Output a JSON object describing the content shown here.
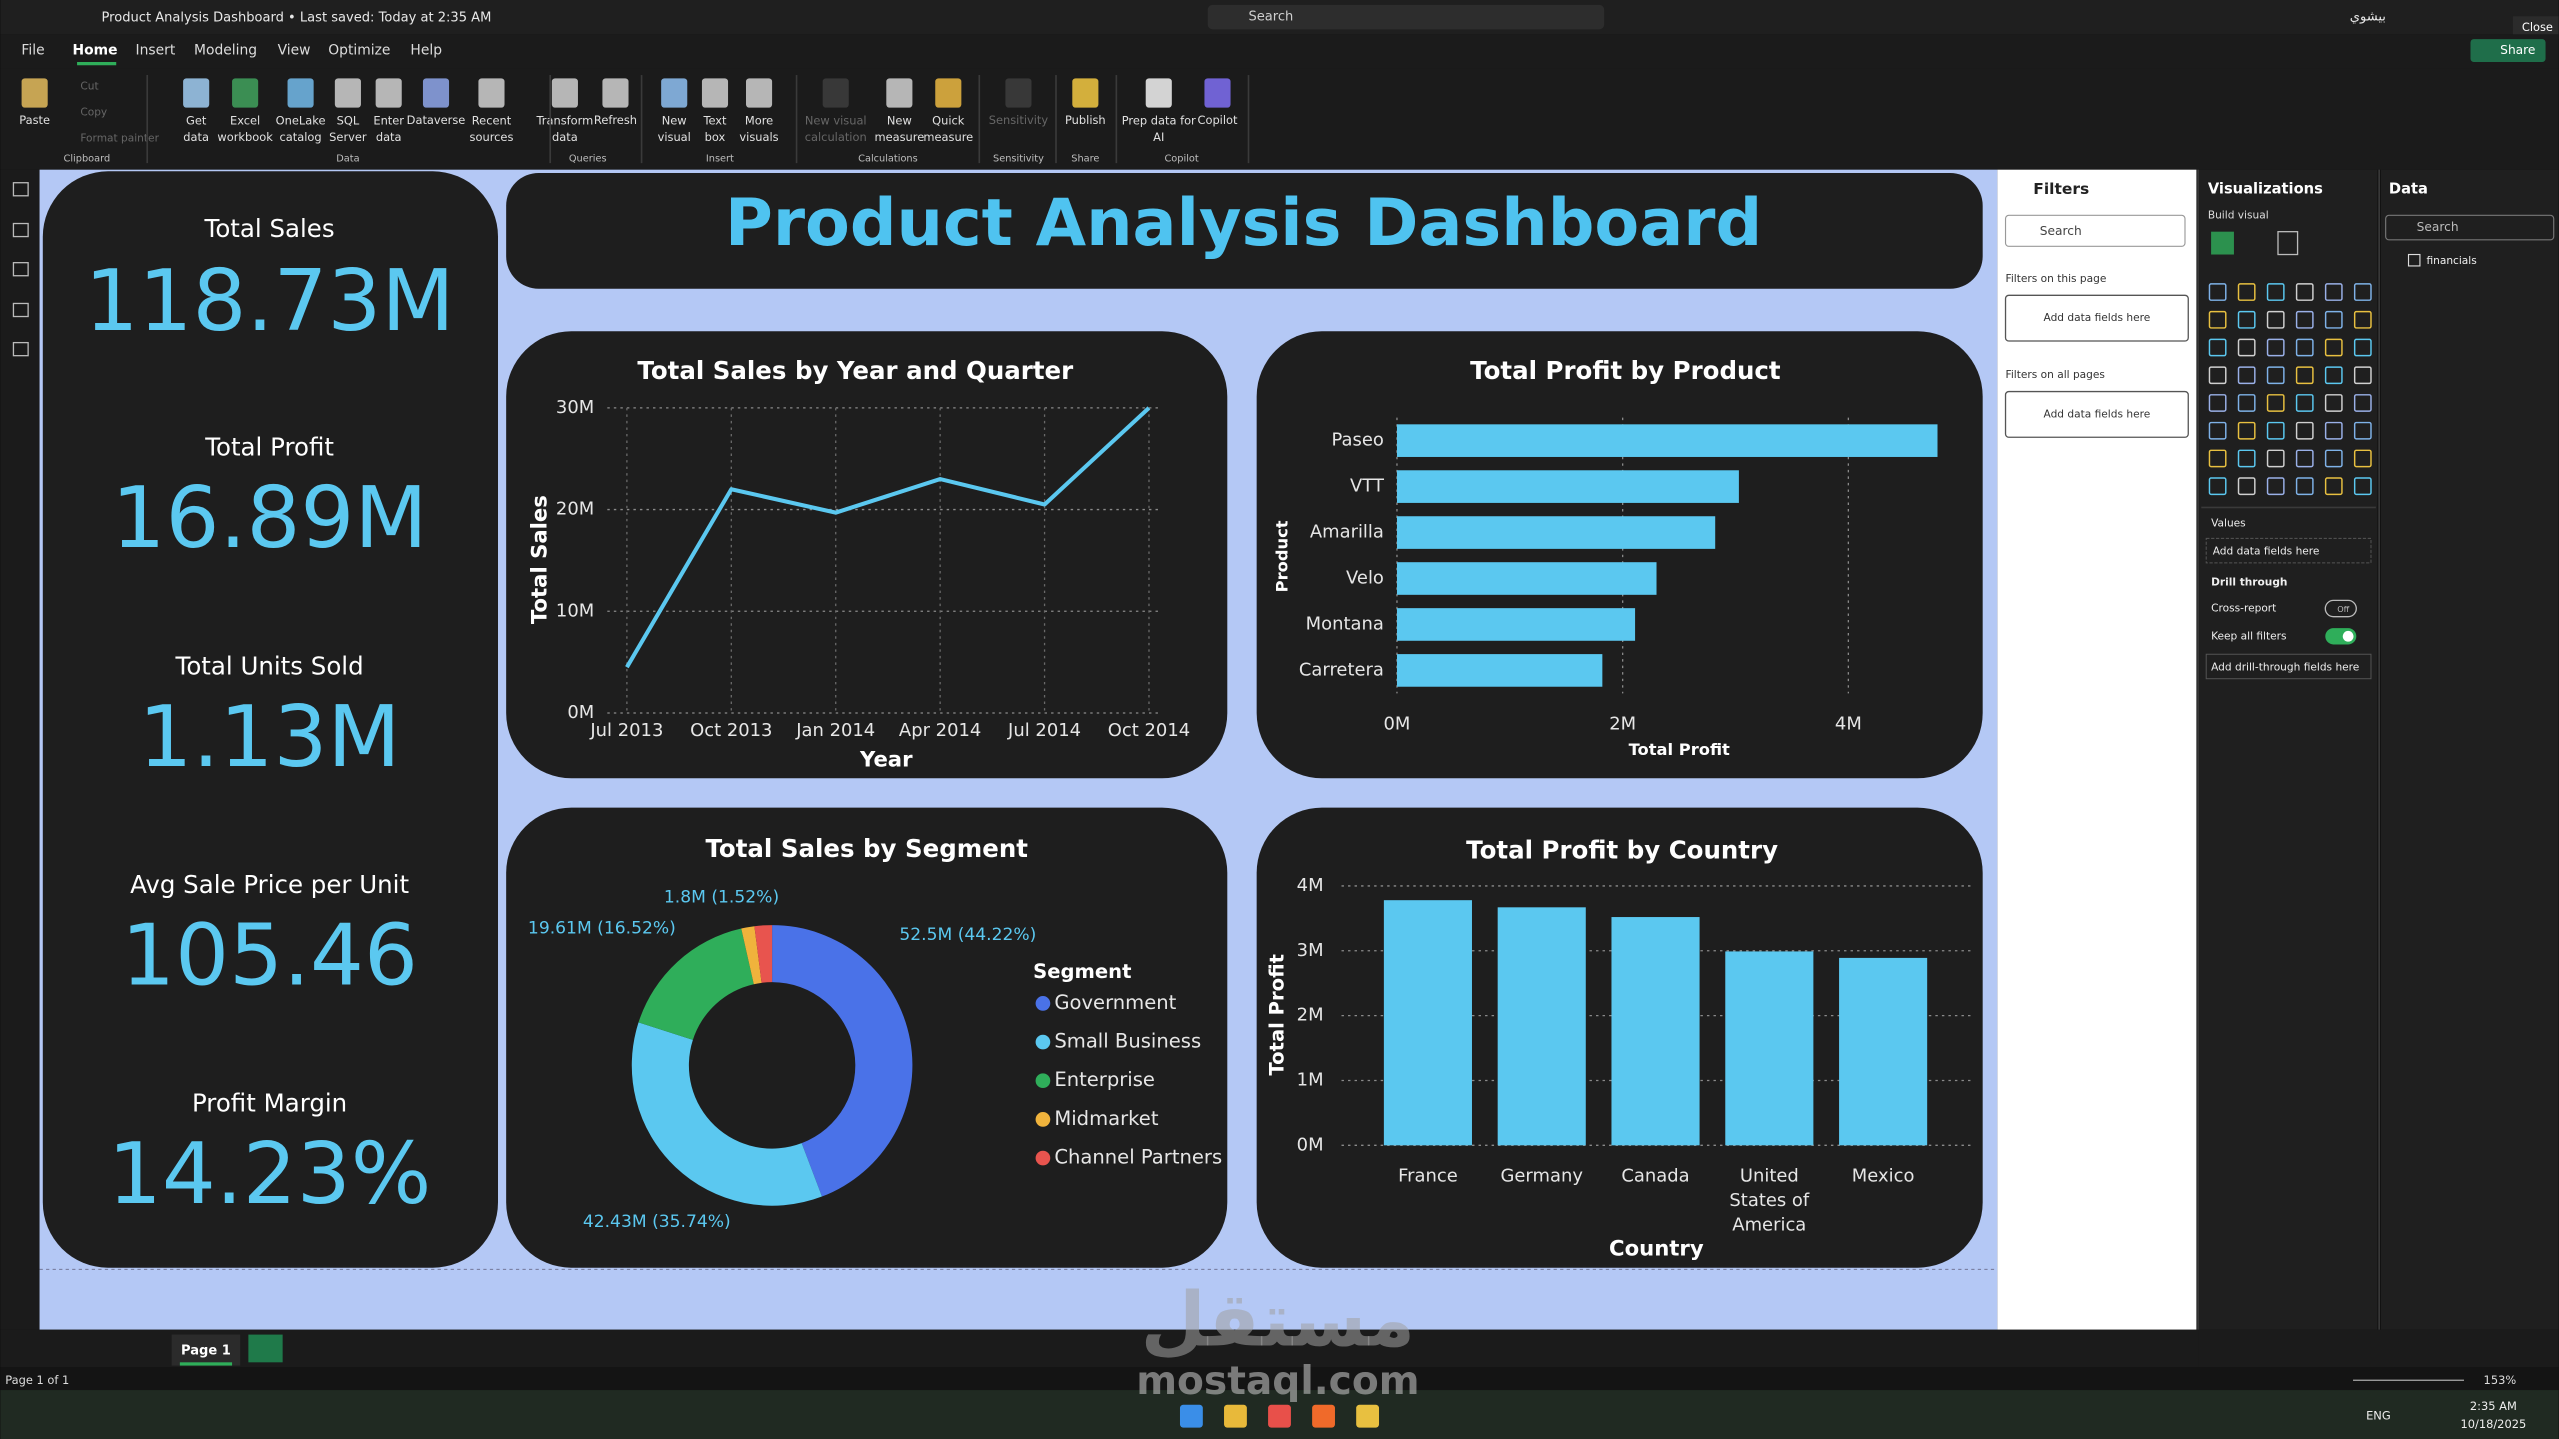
{
  "app": {
    "title": "Product Analysis Dashboard • Last saved: Today at 2:35 AM",
    "search": "Search",
    "user": "بيشوي",
    "close": "Close",
    "share": "Share"
  },
  "menu": [
    "File",
    "Home",
    "Insert",
    "Modeling",
    "View",
    "Optimize",
    "Help"
  ],
  "ribbon": {
    "buttons": [
      "Paste",
      "Get data",
      "Excel workbook",
      "OneLake catalog",
      "SQL Server",
      "Enter data",
      "Dataverse",
      "Recent sources",
      "Transform data",
      "Refresh",
      "New visual",
      "Text box",
      "More visuals",
      "New visual calculation",
      "New measure",
      "Quick measure",
      "Sensitivity",
      "Publish",
      "Prep data for AI",
      "Copilot"
    ],
    "clipboard_small": [
      "Cut",
      "Copy",
      "Format painter"
    ],
    "groups": [
      "Clipboard",
      "Data",
      "Queries",
      "Insert",
      "Calculations",
      "Sensitivity",
      "Share",
      "Copilot"
    ]
  },
  "kpis": [
    {
      "label": "Total Sales",
      "value": "118.73M"
    },
    {
      "label": "Total Profit",
      "value": "16.89M"
    },
    {
      "label": "Total Units Sold",
      "value": "1.13M"
    },
    {
      "label": "Avg Sale Price per Unit",
      "value": "105.46"
    },
    {
      "label": "Profit Margin",
      "value": "14.23%"
    }
  ],
  "dashboard_title": "Product Analysis Dashboard",
  "chart_data": [
    {
      "type": "line",
      "title": "Total Sales by Year and Quarter",
      "xlabel": "Year",
      "ylabel": "Total Sales",
      "categories": [
        "Jul 2013",
        "Oct 2013",
        "Jan 2014",
        "Apr 2014",
        "Jul 2014",
        "Oct 2014"
      ],
      "values": [
        4.5,
        22,
        19.7,
        23,
        20.5,
        30
      ],
      "color": "#5bc8f0",
      "ylim": [
        0,
        30
      ],
      "yticks": [
        {
          "value": 0,
          "label": "0M"
        },
        {
          "value": 10,
          "label": "10M"
        },
        {
          "value": 20,
          "label": "20M"
        },
        {
          "value": 30,
          "label": "30M"
        }
      ],
      "grid": true
    },
    {
      "type": "hbar",
      "title": "Total Profit by Product",
      "xlabel": "Total Profit",
      "ylabel": "Product",
      "categories": [
        "Paseo",
        "VTT",
        "Amarilla",
        "Velo",
        "Montana",
        "Carretera"
      ],
      "values": [
        4.79,
        3.03,
        2.82,
        2.3,
        2.11,
        1.82
      ],
      "color": "#5bc8f0",
      "xlim": [
        0,
        4.8
      ],
      "xticks": [
        {
          "value": 0,
          "label": "0M"
        },
        {
          "value": 2,
          "label": "2M"
        },
        {
          "value": 4,
          "label": "4M"
        }
      ],
      "grid": true
    },
    {
      "type": "donut",
      "title": "Total Sales by Segment",
      "legend_title": "Segment",
      "categories": [
        "Government",
        "Small Business",
        "Enterprise",
        "Midmarket",
        "Channel Partners"
      ],
      "values": [
        52.5,
        42.43,
        19.61,
        1.8,
        2.39
      ],
      "value_labels": [
        "52.5M (44.22%)",
        "42.43M (35.74%)",
        "19.61M (16.52%)",
        "1.8M (1.52%)",
        null
      ],
      "colors": [
        "#4a72e8",
        "#5bc8f0",
        "#2fae5a",
        "#f0b33c",
        "#e8544e"
      ],
      "legend": "right"
    },
    {
      "type": "bar",
      "title": "Total Profit by Country",
      "xlabel": "Country",
      "ylabel": "Total Profit",
      "categories": [
        "France",
        "Germany",
        "Canada",
        "United States of America",
        "Mexico"
      ],
      "values": [
        3.78,
        3.67,
        3.52,
        2.99,
        2.89
      ],
      "color": "#5bc8f0",
      "ylim": [
        0,
        4
      ],
      "yticks": [
        {
          "value": 0,
          "label": "0M"
        },
        {
          "value": 1,
          "label": "1M"
        },
        {
          "value": 2,
          "label": "2M"
        },
        {
          "value": 3,
          "label": "3M"
        },
        {
          "value": 4,
          "label": "4M"
        }
      ],
      "grid": true
    }
  ],
  "filters": {
    "title": "Filters",
    "search": "Search",
    "on_page": "Filters on this page",
    "on_page_add": "Add data fields here",
    "all_pages": "Filters on all pages",
    "all_pages_add": "Add data fields here"
  },
  "visualizations": {
    "title": "Visualizations",
    "build": "Build visual",
    "values": "Values",
    "values_add": "Add data fields here",
    "drill": "Drill through",
    "cross": "Cross-report",
    "cross_state": "Off",
    "keep": "Keep all filters",
    "drill_add": "Add drill-through fields here"
  },
  "data_pane": {
    "title": "Data",
    "search": "Search",
    "table": "financials"
  },
  "pages": {
    "tab": "Page 1",
    "status": "Page 1 of 1",
    "zoom": "153%"
  },
  "watermark": {
    "arabic": "مستقل",
    "latin": "mostaql.com"
  },
  "taskbar": {
    "lang": "ENG",
    "time": "2:35 AM",
    "date": "10/18/2025"
  }
}
